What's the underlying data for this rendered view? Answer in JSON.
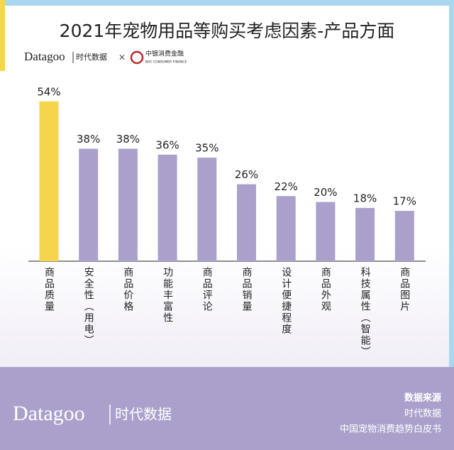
{
  "header": {
    "title": "2021年宠物用品等购买考虑因素-产品方面",
    "brand": "Datagoo",
    "brand_cn": "时代数据",
    "times": "×",
    "partner": "中银消费金融",
    "partner_en": "BOC CONSUMER FINANCE"
  },
  "chart_data": {
    "type": "bar",
    "categories": [
      "商品质量",
      "安全性（用电）",
      "商品价格",
      "功能丰富性",
      "商品评论",
      "商品销量",
      "设计便捷程度",
      "商品外观",
      "科技属性（智能）",
      "商品图片"
    ],
    "values": [
      54,
      38,
      38,
      36,
      35,
      26,
      22,
      20,
      18,
      17
    ],
    "value_labels": [
      "54%",
      "38%",
      "38%",
      "36%",
      "35%",
      "26%",
      "22%",
      "20%",
      "18%",
      "17%"
    ],
    "colors": [
      "#f4d54b",
      "#aba0cb",
      "#aba0cb",
      "#aba0cb",
      "#aba0cb",
      "#aba0cb",
      "#aba0cb",
      "#aba0cb",
      "#aba0cb",
      "#aba0cb"
    ]
  },
  "footer": {
    "source_label": "数据来源",
    "source_1": "时代数据",
    "source_2": "中国宠物消费趋势白皮书",
    "brand": "Datagoo",
    "brand_cn": "时代数据"
  }
}
